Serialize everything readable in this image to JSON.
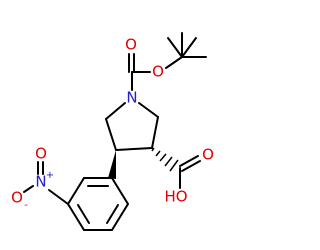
{
  "atoms": [
    {
      "label": "O"
    },
    {
      "label": "O"
    },
    {
      "label": "N"
    },
    {
      "label": "O"
    },
    {
      "label": "HO"
    },
    {
      "label": "N",
      "charge": "+"
    },
    {
      "label": "O"
    },
    {
      "label": "O",
      "charge": "-"
    }
  ]
}
